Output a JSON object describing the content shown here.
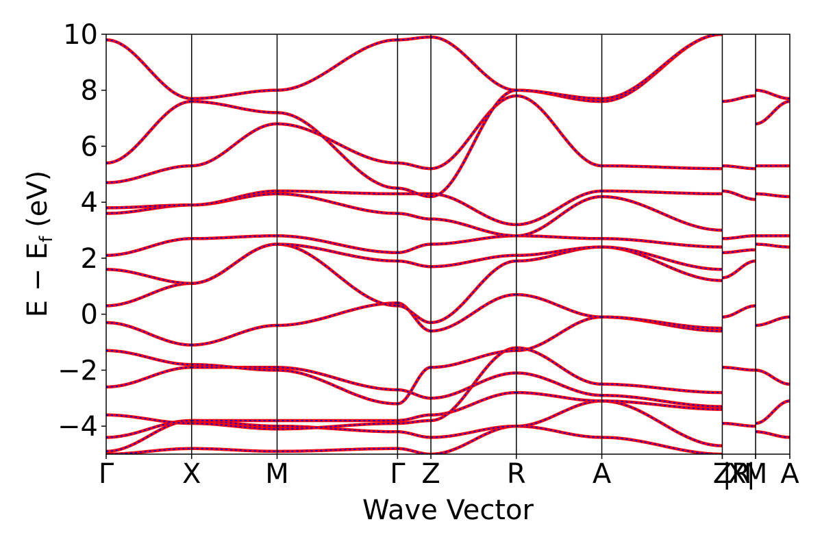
{
  "chart_data": {
    "type": "line",
    "xlabel": "Wave Vector",
    "ylabel_main": "E − E",
    "ylabel_sub": "f",
    "ylabel_unit": " (eV)",
    "ylim": [
      -5,
      10
    ],
    "yticks": [
      -4,
      -2,
      0,
      2,
      4,
      6,
      8,
      10
    ],
    "ytick_labels": [
      "−4",
      "−2",
      "0",
      "2",
      "4",
      "6",
      "8",
      "10"
    ],
    "xlim": [
      0,
      8.0
    ],
    "kpoints": [
      {
        "label": "Γ",
        "x": 0.0
      },
      {
        "label": "X",
        "x": 1.0
      },
      {
        "label": "M",
        "x": 2.0
      },
      {
        "label": "Γ",
        "x": 3.41
      },
      {
        "label": "Z",
        "x": 3.8
      },
      {
        "label": "R",
        "x": 4.8
      },
      {
        "label": "A",
        "x": 5.8
      },
      {
        "label": "Z",
        "x": 7.21
      },
      {
        "label": "|R",
        "x": 7.21
      },
      {
        "label": "X|",
        "x": 7.6
      },
      {
        "label": "M",
        "x": 7.6
      },
      {
        "label": "A",
        "x": 8.0
      }
    ],
    "grid": false,
    "colors": {
      "series_a": "#ff0000",
      "series_b": "#0000ff",
      "frame": "#000000"
    },
    "series": [
      {
        "segments": [
          {
            "x0": 0.0,
            "x1": 1.0,
            "bands": [
              [
                -5.0,
                -4.8
              ],
              [
                -4.9,
                -3.8
              ],
              [
                -4.4,
                -3.8
              ],
              [
                -3.6,
                -3.9
              ],
              [
                -2.6,
                -1.9
              ],
              [
                -1.3,
                -1.8
              ],
              [
                -0.3,
                -1.1
              ],
              [
                0.3,
                1.1
              ],
              [
                1.6,
                1.1
              ],
              [
                2.1,
                2.7
              ],
              [
                3.6,
                3.9
              ],
              [
                3.8,
                3.9
              ],
              [
                4.7,
                5.3
              ],
              [
                5.4,
                7.6
              ],
              [
                9.8,
                7.7
              ]
            ]
          },
          {
            "x0": 1.0,
            "x1": 2.0,
            "bands": [
              [
                -4.8,
                -4.9
              ],
              [
                -3.8,
                -4.0
              ],
              [
                -3.8,
                -3.8
              ],
              [
                -3.9,
                -4.1
              ],
              [
                -1.9,
                -1.9
              ],
              [
                -1.8,
                -2.0
              ],
              [
                -1.1,
                -0.4
              ],
              [
                1.1,
                2.5
              ],
              [
                1.1,
                2.5
              ],
              [
                2.7,
                2.8
              ],
              [
                3.9,
                4.3
              ],
              [
                3.9,
                4.4
              ],
              [
                5.3,
                6.8
              ],
              [
                7.6,
                7.2
              ],
              [
                7.7,
                8.0
              ]
            ]
          },
          {
            "x0": 2.0,
            "x1": 3.41,
            "bands": [
              [
                -4.9,
                -4.8
              ],
              [
                -4.0,
                -4.2
              ],
              [
                -3.8,
                -3.8
              ],
              [
                -4.1,
                -3.9
              ],
              [
                -1.9,
                -2.7
              ],
              [
                -2.0,
                -3.2
              ],
              [
                -0.4,
                0.4
              ],
              [
                2.5,
                0.3
              ],
              [
                2.5,
                1.9
              ],
              [
                2.8,
                2.2
              ],
              [
                4.3,
                3.6
              ],
              [
                4.4,
                4.3
              ],
              [
                6.8,
                5.4
              ],
              [
                7.2,
                4.5
              ],
              [
                8.0,
                9.8
              ]
            ]
          },
          {
            "x0": 3.41,
            "x1": 3.8,
            "bands": [
              [
                -4.8,
                -5.0
              ],
              [
                -4.2,
                -4.4
              ],
              [
                -3.8,
                -3.6
              ],
              [
                -3.9,
                -3.8
              ],
              [
                -2.7,
                -3.0
              ],
              [
                -3.2,
                -1.9
              ],
              [
                0.4,
                -0.6
              ],
              [
                0.3,
                -0.3
              ],
              [
                1.9,
                1.7
              ],
              [
                2.2,
                2.5
              ],
              [
                3.6,
                3.4
              ],
              [
                4.3,
                4.3
              ],
              [
                5.4,
                5.2
              ],
              [
                4.5,
                4.2
              ],
              [
                9.8,
                9.9
              ]
            ]
          },
          {
            "x0": 3.8,
            "x1": 4.8,
            "bands": [
              [
                -5.0,
                -4.0
              ],
              [
                -4.4,
                -4.0
              ],
              [
                -3.6,
                -2.8
              ],
              [
                -3.8,
                -1.2
              ],
              [
                -3.0,
                -2.1
              ],
              [
                -1.9,
                -1.3
              ],
              [
                -0.6,
                0.7
              ],
              [
                -0.3,
                1.9
              ],
              [
                1.7,
                2.1
              ],
              [
                2.5,
                2.8
              ],
              [
                3.4,
                2.8
              ],
              [
                4.3,
                3.2
              ],
              [
                5.2,
                7.8
              ],
              [
                4.2,
                8.0
              ],
              [
                9.9,
                8.0
              ]
            ]
          },
          {
            "x0": 4.8,
            "x1": 5.8,
            "bands": [
              [
                -4.0,
                -4.4
              ],
              [
                -4.0,
                -3.1
              ],
              [
                -2.8,
                -3.1
              ],
              [
                -1.2,
                -2.5
              ],
              [
                -2.1,
                -2.9
              ],
              [
                -1.3,
                -0.1
              ],
              [
                0.7,
                -0.1
              ],
              [
                1.9,
                2.4
              ],
              [
                2.1,
                2.4
              ],
              [
                2.8,
                2.7
              ],
              [
                2.8,
                4.2
              ],
              [
                3.2,
                4.4
              ],
              [
                7.8,
                5.3
              ],
              [
                8.0,
                7.6
              ],
              [
                8.0,
                7.7
              ]
            ]
          },
          {
            "x0": 5.8,
            "x1": 7.21,
            "bands": [
              [
                -4.4,
                -5.0
              ],
              [
                -3.1,
                -4.7
              ],
              [
                -3.1,
                -3.4
              ],
              [
                -2.5,
                -2.8
              ],
              [
                -2.9,
                -3.3
              ],
              [
                -0.1,
                -0.6
              ],
              [
                -0.1,
                -0.5
              ],
              [
                2.4,
                1.2
              ],
              [
                2.4,
                1.6
              ],
              [
                2.7,
                2.4
              ],
              [
                4.2,
                3.0
              ],
              [
                4.4,
                4.3
              ],
              [
                5.3,
                5.2
              ],
              [
                7.6,
                10.0
              ],
              [
                7.7,
                10.0
              ]
            ]
          },
          {
            "x0": 7.21,
            "x1": 7.6,
            "bands": [
              [
                -3.9,
                -4.0
              ],
              [
                -1.9,
                -2.0
              ],
              [
                -0.1,
                0.3
              ],
              [
                1.3,
                1.9
              ],
              [
                2.2,
                2.3
              ],
              [
                2.7,
                2.8
              ],
              [
                4.4,
                4.1
              ],
              [
                5.3,
                5.2
              ],
              [
                7.6,
                7.8
              ]
            ]
          },
          {
            "x0": 7.6,
            "x1": 8.0,
            "bands": [
              [
                -4.2,
                -4.4
              ],
              [
                -3.9,
                -3.1
              ],
              [
                -2.0,
                -2.5
              ],
              [
                -0.4,
                -0.1
              ],
              [
                2.5,
                2.4
              ],
              [
                2.8,
                2.8
              ],
              [
                4.3,
                4.2
              ],
              [
                5.3,
                5.3
              ],
              [
                6.8,
                7.6
              ],
              [
                8.0,
                7.7
              ]
            ]
          }
        ]
      }
    ]
  }
}
